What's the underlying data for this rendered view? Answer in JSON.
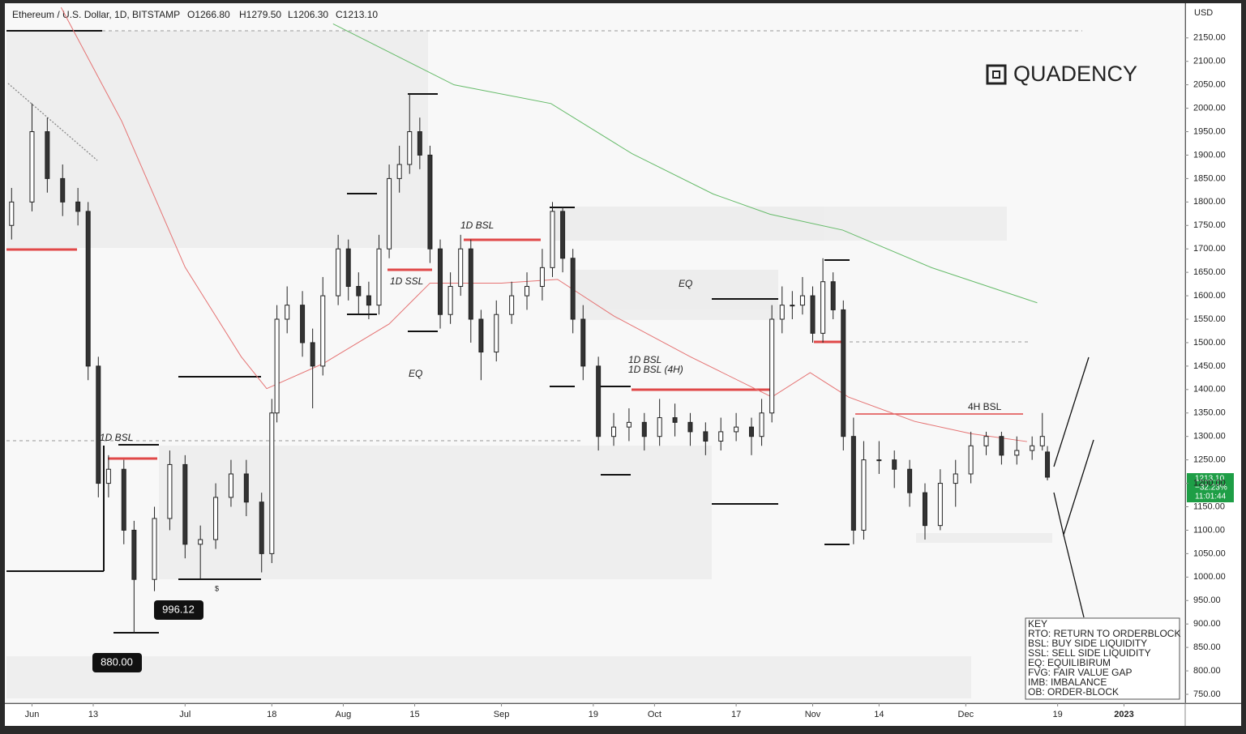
{
  "header": {
    "symbol": "Ethereum / U.S. Dollar, 1D, BITSTAMP",
    "open": "O1266.80",
    "high": "H1279.50",
    "low": "L1206.30",
    "close": "C1213.10"
  },
  "brand": "QUADENCY",
  "currency": "USD",
  "annotations": {
    "bsl_1d_left": "1D BSL",
    "ssl_1d": "1D SSL",
    "eq_left": "EQ",
    "bsl_1d_mid": "1D BSL",
    "bsl_1d_mid_tf": "1D BSL (4H)",
    "eq_mid": "EQ",
    "bsl_4h": "4H BSL",
    "dollar": "$"
  },
  "price_tags": {
    "low_tag": "880.00",
    "low2_tag": "996.12",
    "last_price": "1213.10",
    "change": "−32.23%",
    "countdown": "11:01:44"
  },
  "key": {
    "title": "KEY",
    "items": [
      "RTO: RETURN TO ORDERBLOCK",
      "BSL: BUY SIDE LIQUIDITY",
      "SSL: SELL SIDE LIQUIDITY",
      "EQ: EQUILIBIRUM",
      "FVG: FAIR VALUE GAP",
      "IMB: IMBALANCE",
      "OB: ORDER-BLOCK"
    ]
  },
  "chart_data": {
    "type": "candlestick",
    "x": [
      -4,
      0,
      3,
      6,
      9,
      11,
      13,
      15,
      18,
      20,
      24,
      27,
      30,
      33,
      36,
      39,
      42,
      45,
      47,
      48,
      50,
      53,
      55,
      57,
      60,
      62,
      64,
      66,
      68,
      70,
      72,
      74,
      76,
      78,
      80,
      82,
      84,
      86,
      88,
      91,
      94,
      97,
      100,
      102,
      104,
      106,
      108,
      111,
      114,
      117,
      120,
      123,
      126,
      129,
      132,
      135,
      138,
      141,
      143,
      145,
      147,
      149,
      151,
      153,
      155,
      157,
      159,
      161,
      163,
      166,
      169,
      172,
      175,
      178,
      181,
      184,
      187,
      190,
      193,
      196,
      198,
      199
    ],
    "open": [
      1750,
      1800,
      1950,
      1850,
      1800,
      1780,
      1450,
      1200,
      1230,
      1100,
      995,
      1125,
      1240,
      1070,
      1080,
      1170,
      1220,
      1160,
      1050,
      1350,
      1550,
      1580,
      1500,
      1450,
      1600,
      1700,
      1620,
      1600,
      1580,
      1700,
      1850,
      1880,
      1950,
      1900,
      1700,
      1560,
      1620,
      1700,
      1550,
      1480,
      1560,
      1600,
      1620,
      1660,
      1780,
      1680,
      1550,
      1450,
      1300,
      1320,
      1330,
      1300,
      1340,
      1330,
      1310,
      1290,
      1310,
      1320,
      1300,
      1350,
      1550,
      1580,
      1580,
      1600,
      1520,
      1630,
      1570,
      1300,
      1100,
      1250,
      1250,
      1230,
      1180,
      1110,
      1200,
      1220,
      1280,
      1300,
      1260,
      1270,
      1280,
      1266.8
    ],
    "high": [
      1830,
      2010,
      1980,
      1880,
      1830,
      1800,
      1470,
      1260,
      1250,
      1120,
      1150,
      1270,
      1260,
      1110,
      1200,
      1250,
      1250,
      1180,
      1380,
      1580,
      1620,
      1610,
      1530,
      1640,
      1730,
      1720,
      1650,
      1630,
      1730,
      1880,
      1920,
      2030,
      1980,
      1920,
      1720,
      1650,
      1730,
      1720,
      1570,
      1590,
      1630,
      1650,
      1700,
      1800,
      1790,
      1700,
      1580,
      1470,
      1350,
      1360,
      1350,
      1380,
      1370,
      1350,
      1330,
      1340,
      1350,
      1340,
      1380,
      1580,
      1620,
      1610,
      1640,
      1620,
      1680,
      1650,
      1590,
      1340,
      1290,
      1290,
      1270,
      1250,
      1200,
      1230,
      1250,
      1310,
      1310,
      1310,
      1300,
      1300,
      1350,
      1279.5
    ],
    "low": [
      1720,
      1780,
      1820,
      1770,
      1750,
      1420,
      1170,
      1170,
      1070,
      880,
      970,
      1100,
      1040,
      996.12,
      1060,
      1150,
      1130,
      1010,
      1030,
      1330,
      1520,
      1470,
      1360,
      1430,
      1580,
      1590,
      1560,
      1550,
      1560,
      1680,
      1820,
      1860,
      1870,
      1670,
      1530,
      1540,
      1600,
      1500,
      1420,
      1460,
      1540,
      1570,
      1590,
      1640,
      1650,
      1520,
      1420,
      1270,
      1280,
      1290,
      1270,
      1280,
      1300,
      1280,
      1260,
      1270,
      1290,
      1260,
      1280,
      1330,
      1520,
      1550,
      1560,
      1500,
      1500,
      1550,
      1270,
      1070,
      1080,
      1220,
      1190,
      1150,
      1080,
      1100,
      1150,
      1200,
      1260,
      1240,
      1240,
      1250,
      1270,
      1206.3
    ],
    "close": [
      1800,
      1950,
      1850,
      1800,
      1780,
      1450,
      1200,
      1230,
      1100,
      995,
      1125,
      1240,
      1070,
      1080,
      1170,
      1220,
      1160,
      1050,
      1350,
      1550,
      1580,
      1500,
      1450,
      1600,
      1700,
      1620,
      1600,
      1580,
      1700,
      1850,
      1880,
      1950,
      1900,
      1700,
      1560,
      1620,
      1700,
      1550,
      1480,
      1560,
      1600,
      1620,
      1660,
      1780,
      1680,
      1550,
      1450,
      1300,
      1320,
      1330,
      1300,
      1340,
      1330,
      1310,
      1290,
      1310,
      1320,
      1300,
      1350,
      1550,
      1580,
      1580,
      1600,
      1520,
      1630,
      1570,
      1300,
      1100,
      1250,
      1250,
      1230,
      1180,
      1110,
      1200,
      1220,
      1280,
      1300,
      1260,
      1270,
      1280,
      1300,
      1213.1
    ],
    "up_color": "#ffffff",
    "down_color": "#333333",
    "lines": [
      {
        "color": "#e57373",
        "x": [
          5.7,
          17.6,
          30,
          41,
          46,
          57,
          70,
          78,
          92,
          103,
          114,
          129,
          145,
          152.5,
          160,
          173,
          184,
          195
        ],
        "values": [
          2215,
          1972,
          1661,
          1470,
          1402,
          1455,
          1540,
          1627,
          1627,
          1635,
          1557,
          1470,
          1384,
          1436,
          1384,
          1332,
          1306,
          1289
        ]
      },
      {
        "color": "#66bb6a",
        "x": [
          59,
          82.7,
          101.7,
          117.6,
          133.5,
          144.6,
          158.9,
          176.3,
          197
        ],
        "values": [
          2180,
          2050,
          2010,
          1903,
          1817,
          1774,
          1740,
          1660,
          1585
        ]
      }
    ],
    "xlim": [
      -5,
      226
    ],
    "ylim": [
      731,
      2217
    ],
    "xticks": [
      {
        "value": 0,
        "label": "Jun"
      },
      {
        "value": 12,
        "label": "13"
      },
      {
        "value": 30,
        "label": "Jul"
      },
      {
        "value": 47,
        "label": "18"
      },
      {
        "value": 61,
        "label": "Aug"
      },
      {
        "value": 75,
        "label": "15"
      },
      {
        "value": 92,
        "label": "Sep"
      },
      {
        "value": 110,
        "label": "19"
      },
      {
        "value": 122,
        "label": "Oct"
      },
      {
        "value": 138,
        "label": "17"
      },
      {
        "value": 153,
        "label": "Nov"
      },
      {
        "value": 166,
        "label": "14"
      },
      {
        "value": 183,
        "label": "Dec"
      },
      {
        "value": 201,
        "label": "19"
      },
      {
        "value": 214,
        "label": "2023"
      }
    ],
    "yticks": [
      {
        "value": 750,
        "label": "750.00"
      },
      {
        "value": 800,
        "label": "800.00"
      },
      {
        "value": 850,
        "label": "850.00"
      },
      {
        "value": 900,
        "label": "900.00"
      },
      {
        "value": 950,
        "label": "950.00"
      },
      {
        "value": 1000,
        "label": "1000.00"
      },
      {
        "value": 1050,
        "label": "1050.00"
      },
      {
        "value": 1100,
        "label": "1100.00"
      },
      {
        "value": 1150,
        "label": "1150.00"
      },
      {
        "value": 1200,
        "label": "1200.00"
      },
      {
        "value": 1250,
        "label": "1250.00"
      },
      {
        "value": 1300,
        "label": "1300.00"
      },
      {
        "value": 1350,
        "label": "1350.00"
      },
      {
        "value": 1400,
        "label": "1400.00"
      },
      {
        "value": 1450,
        "label": "1450.00"
      },
      {
        "value": 1500,
        "label": "1500.00"
      },
      {
        "value": 1550,
        "label": "1550.00"
      },
      {
        "value": 1600,
        "label": "1600.00"
      },
      {
        "value": 1650,
        "label": "1650.00"
      },
      {
        "value": 1700,
        "label": "1700.00"
      },
      {
        "value": 1750,
        "label": "1750.00"
      },
      {
        "value": 1800,
        "label": "1800.00"
      },
      {
        "value": 1850,
        "label": "1850.00"
      },
      {
        "value": 1900,
        "label": "1900.00"
      },
      {
        "value": 1950,
        "label": "1950.00"
      },
      {
        "value": 2000,
        "label": "2000.00"
      },
      {
        "value": 2050,
        "label": "2050.00"
      },
      {
        "value": 2100,
        "label": "2100.00"
      },
      {
        "value": 2150,
        "label": "2150.00"
      }
    ]
  }
}
